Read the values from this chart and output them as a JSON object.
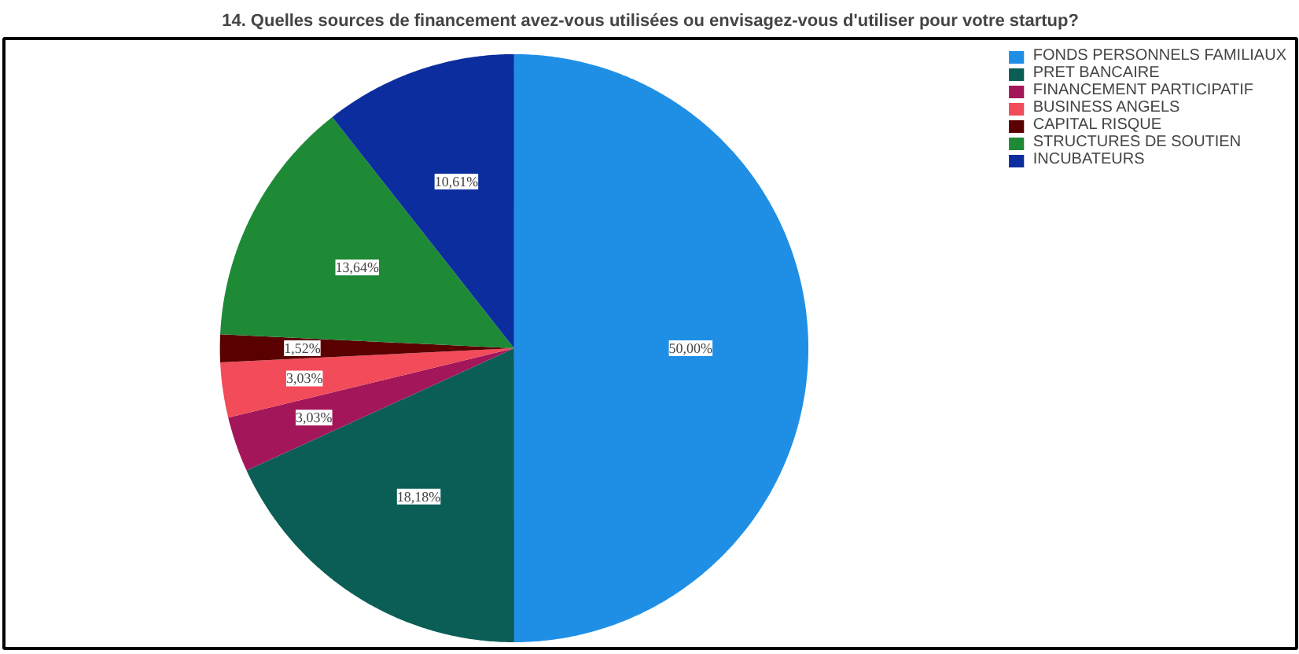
{
  "chart_data": {
    "type": "pie",
    "title": "14. Quelles sources de financement avez-vous utilisées ou envisagez-vous d'utiliser pour votre startup?",
    "categories": [
      "FONDS PERSONNELS FAMILIAUX",
      "PRET BANCAIRE",
      "FINANCEMENT PARTICIPATIF",
      "BUSINESS ANGELS",
      "CAPITAL RISQUE",
      "STRUCTURES DE SOUTIEN",
      "INCUBATEURS"
    ],
    "values": [
      50.0,
      18.18,
      3.03,
      3.03,
      1.52,
      13.64,
      10.61
    ],
    "value_labels": [
      "50,00%",
      "18,18%",
      "3,03%",
      "3,03%",
      "1,52%",
      "13,64%",
      "10,61%"
    ],
    "colors": [
      "#1f8fe6",
      "#0b5e55",
      "#a3165a",
      "#f24b59",
      "#5a0000",
      "#1e8a36",
      "#0c2d9e"
    ],
    "legend": "top right"
  }
}
